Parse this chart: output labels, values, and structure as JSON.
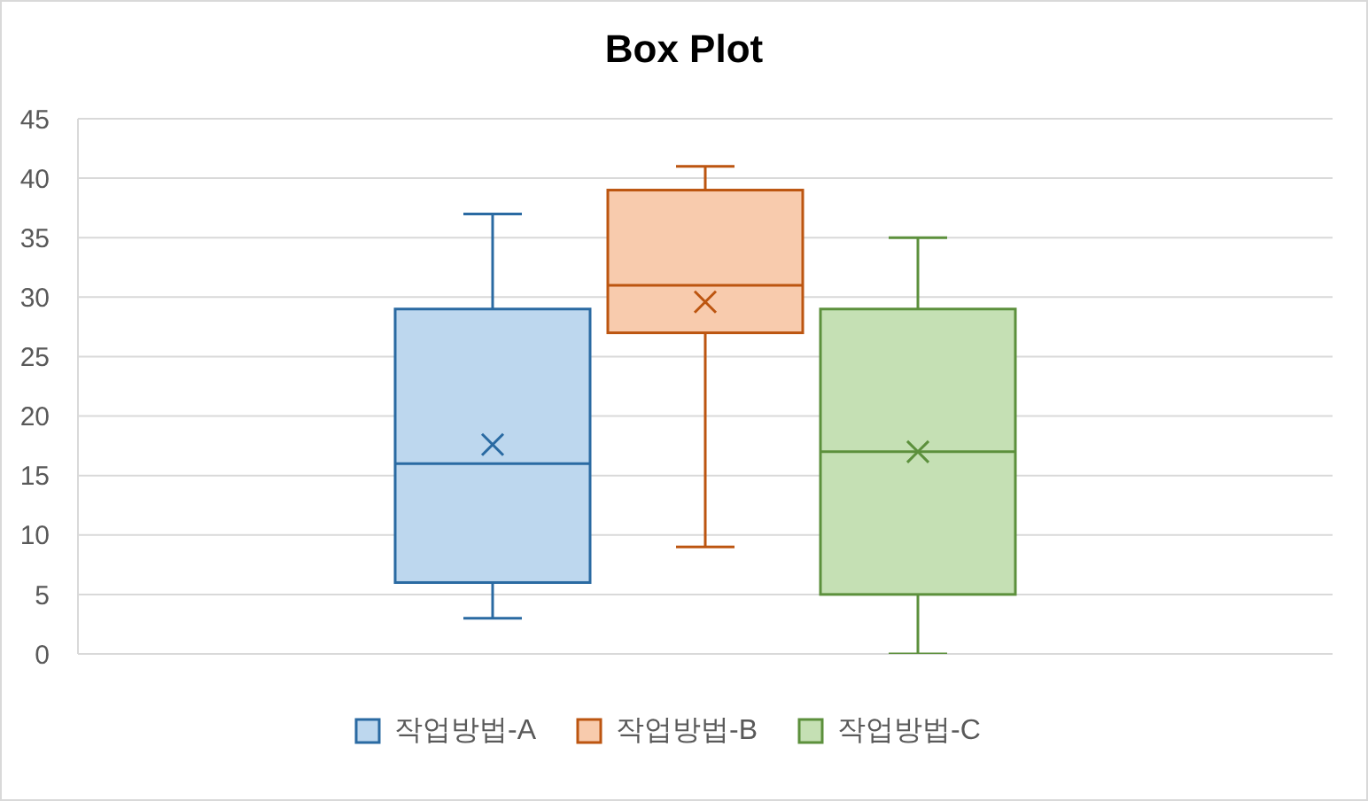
{
  "chart_data": {
    "type": "box",
    "title": "Box Plot",
    "categories": [
      null
    ],
    "ylim": [
      0,
      45
    ],
    "yticks": [
      0,
      5,
      10,
      15,
      20,
      25,
      30,
      35,
      40,
      45
    ],
    "grid": "y",
    "legend": "bottom",
    "tick_labels": "y",
    "series": [
      {
        "name": "작업방법-A",
        "color": "#bdd7ee",
        "boxes": [
          {
            "low": 3,
            "q1": 6,
            "median": 16,
            "q3": 29,
            "high": 37,
            "mean": 17.6
          }
        ]
      },
      {
        "name": "작업방법-B",
        "color": "#f8cbad",
        "boxes": [
          {
            "low": 9,
            "q1": 27,
            "median": 31,
            "q3": 39,
            "high": 41,
            "mean": 29.6
          }
        ]
      },
      {
        "name": "작업방법-C",
        "color": "#c5e0b4",
        "boxes": [
          {
            "low": 0,
            "q1": 5,
            "median": 17,
            "q3": 29,
            "high": 35,
            "mean": 17
          }
        ]
      }
    ]
  }
}
